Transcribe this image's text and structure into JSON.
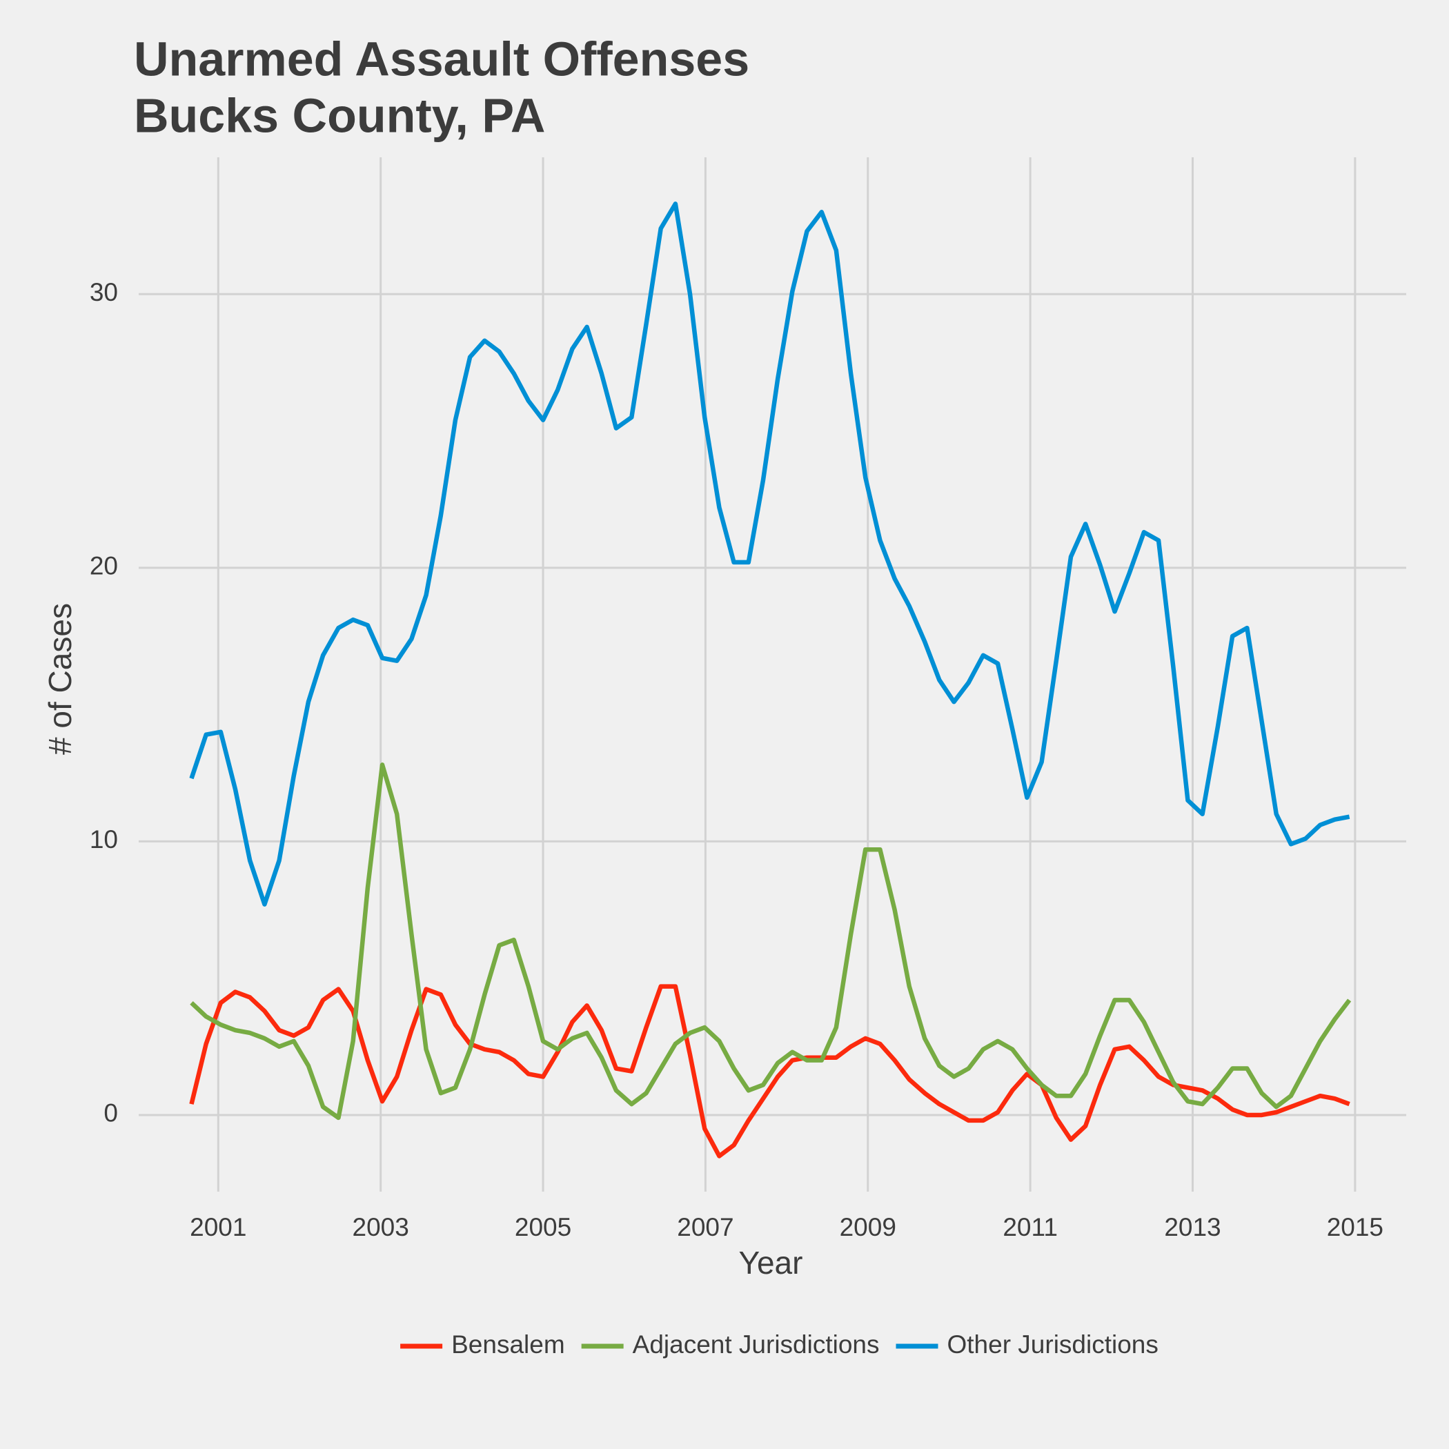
{
  "chart_data": {
    "type": "line",
    "title": "Unarmed Assault Offenses",
    "subtitle": "Bucks County, PA",
    "x_label": "Year",
    "y_label": "# of Cases",
    "x": [
      2000.67,
      2000.85,
      2001.03,
      2001.21,
      2001.39,
      2001.57,
      2001.75,
      2001.93,
      2002.11,
      2002.29,
      2002.48,
      2002.66,
      2002.84,
      2003.02,
      2003.2,
      2003.38,
      2003.56,
      2003.74,
      2003.92,
      2004.1,
      2004.28,
      2004.46,
      2004.64,
      2004.82,
      2005.0,
      2005.18,
      2005.36,
      2005.54,
      2005.72,
      2005.9,
      2006.09,
      2006.27,
      2006.45,
      2006.63,
      2006.81,
      2006.99,
      2007.17,
      2007.35,
      2007.53,
      2007.71,
      2007.89,
      2008.07,
      2008.25,
      2008.43,
      2008.61,
      2008.79,
      2008.97,
      2009.15,
      2009.33,
      2009.51,
      2009.7,
      2009.88,
      2010.06,
      2010.24,
      2010.42,
      2010.6,
      2010.78,
      2010.96,
      2011.14,
      2011.32,
      2011.5,
      2011.68,
      2011.86,
      2012.04,
      2012.22,
      2012.4,
      2012.58,
      2012.76,
      2012.94,
      2013.12,
      2013.31,
      2013.49,
      2013.67,
      2013.85,
      2014.03,
      2014.21,
      2014.39,
      2014.57,
      2014.75,
      2014.93
    ],
    "series": [
      {
        "name": "Bensalem",
        "color": "#fc2a0d",
        "values": [
          0.4,
          2.6,
          4.1,
          4.5,
          4.3,
          3.8,
          3.1,
          2.9,
          3.2,
          4.2,
          4.6,
          3.8,
          2.0,
          0.5,
          1.4,
          3.1,
          4.6,
          4.4,
          3.3,
          2.6,
          2.4,
          2.3,
          2.0,
          1.5,
          1.4,
          2.3,
          3.4,
          4.0,
          3.1,
          1.7,
          1.6,
          3.2,
          4.7,
          4.7,
          2.2,
          -0.5,
          -1.5,
          -1.1,
          -0.2,
          0.6,
          1.4,
          2.0,
          2.1,
          2.1,
          2.1,
          2.5,
          2.8,
          2.6,
          2.0,
          1.3,
          0.8,
          0.4,
          0.1,
          -0.2,
          -0.2,
          0.1,
          0.9,
          1.5,
          1.1,
          -0.1,
          -0.9,
          -0.4,
          1.1,
          2.4,
          2.5,
          2.0,
          1.4,
          1.1,
          1.0,
          0.9,
          0.6,
          0.2,
          0.0,
          0.0,
          0.1,
          0.3,
          0.5,
          0.7,
          0.6,
          0.4
        ]
      },
      {
        "name": "Adjacent Jurisdictions",
        "color": "#77ab43",
        "values": [
          4.1,
          3.6,
          3.3,
          3.1,
          3.0,
          2.8,
          2.5,
          2.7,
          1.8,
          0.3,
          -0.1,
          2.7,
          8.3,
          12.8,
          11.0,
          6.6,
          2.4,
          0.8,
          1.0,
          2.4,
          4.4,
          6.2,
          6.4,
          4.7,
          2.7,
          2.4,
          2.8,
          3.0,
          2.1,
          0.9,
          0.4,
          0.8,
          1.7,
          2.6,
          3.0,
          3.2,
          2.7,
          1.7,
          0.9,
          1.1,
          1.9,
          2.3,
          2.0,
          2.0,
          3.2,
          6.6,
          9.7,
          9.7,
          7.5,
          4.7,
          2.8,
          1.8,
          1.4,
          1.7,
          2.4,
          2.7,
          2.4,
          1.7,
          1.1,
          0.7,
          0.7,
          1.5,
          2.9,
          4.2,
          4.2,
          3.4,
          2.3,
          1.2,
          0.5,
          0.4,
          1.0,
          1.7,
          1.7,
          0.8,
          0.3,
          0.7,
          1.7,
          2.7,
          3.5,
          4.2
        ]
      },
      {
        "name": "Other Jurisdictions",
        "color": "#008fd5",
        "values": [
          12.3,
          13.9,
          14.0,
          11.9,
          9.3,
          7.7,
          9.3,
          12.4,
          15.1,
          16.8,
          17.8,
          18.1,
          17.9,
          16.7,
          16.6,
          17.4,
          19.0,
          21.9,
          25.4,
          27.7,
          28.3,
          27.9,
          27.1,
          26.1,
          25.4,
          26.5,
          28.0,
          28.8,
          27.1,
          25.1,
          25.5,
          28.9,
          32.4,
          33.3,
          30.0,
          25.5,
          22.2,
          20.2,
          20.2,
          23.2,
          26.9,
          30.1,
          32.3,
          33.0,
          31.6,
          27.1,
          23.3,
          21.0,
          19.6,
          18.6,
          17.3,
          15.9,
          15.1,
          15.8,
          16.8,
          16.5,
          14.1,
          11.6,
          12.9,
          16.6,
          20.4,
          21.6,
          20.1,
          18.4,
          19.8,
          21.3,
          21.0,
          16.4,
          11.5,
          11.0,
          14.2,
          17.5,
          17.8,
          14.4,
          11.0,
          9.9,
          10.1,
          10.6,
          10.8,
          10.9
        ]
      }
    ],
    "xlim": [
      2000.02,
      2015.63
    ],
    "xticks": [
      2001,
      2003,
      2005,
      2007,
      2009,
      2011,
      2013,
      2015
    ],
    "ylim": [
      -2.8,
      35
    ],
    "yticks": [
      0,
      10,
      20,
      30
    ],
    "grid": true,
    "legend": "bottom"
  }
}
